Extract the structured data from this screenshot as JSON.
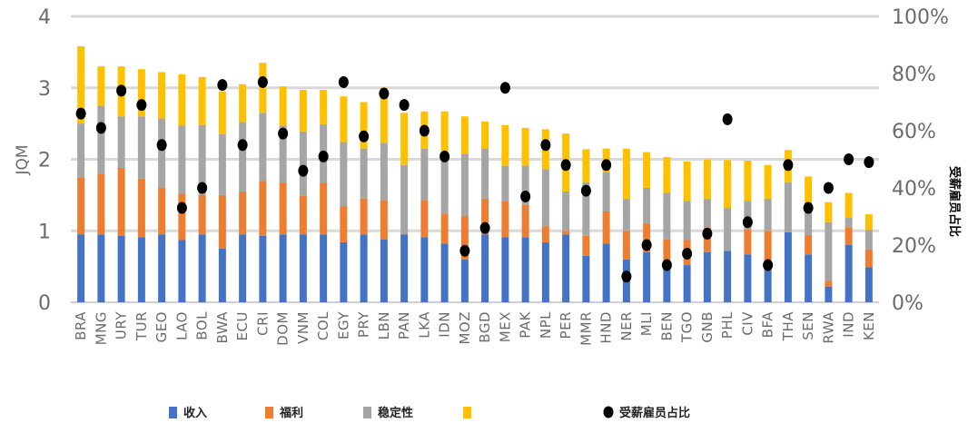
{
  "chart_data": {
    "type": "bar",
    "stacked": true,
    "ylabel": "JQM",
    "ylabel_right": "受薪雇员占比",
    "ylim": [
      0,
      4
    ],
    "yticks": [
      "0",
      "1",
      "2",
      "3",
      "4"
    ],
    "ylim_right": [
      0,
      100
    ],
    "yticks_right": [
      "0%",
      "20%",
      "40%",
      "60%",
      "80%",
      "100%"
    ],
    "grid": true,
    "legend_position": "bottom",
    "categories": [
      "BRA",
      "MNG",
      "URY",
      "TUR",
      "GEO",
      "LAO",
      "BOL",
      "BWA",
      "ECU",
      "CRI",
      "DOM",
      "VNM",
      "COL",
      "EGY",
      "PRY",
      "LBN",
      "PAN",
      "LKA",
      "IDN",
      "MOZ",
      "BGD",
      "MEX",
      "PAK",
      "NPL",
      "PER",
      "MMR",
      "HND",
      "NER",
      "MLI",
      "BEN",
      "TGO",
      "GNB",
      "PHL",
      "CIV",
      "BFA",
      "THA",
      "SEN",
      "RWA",
      "IND",
      "KEN"
    ],
    "series": [
      {
        "name": "收入",
        "color": "#4472c4",
        "values": [
          0.95,
          0.95,
          0.93,
          0.91,
          0.95,
          0.87,
          0.95,
          0.75,
          0.95,
          0.93,
          0.95,
          0.95,
          0.95,
          0.84,
          0.95,
          0.88,
          0.95,
          0.91,
          0.82,
          0.6,
          0.95,
          0.91,
          0.91,
          0.84,
          0.95,
          0.65,
          0.82,
          0.6,
          0.7,
          0.58,
          0.52,
          0.7,
          0.72,
          0.67,
          0.45,
          0.98,
          0.67,
          0.22,
          0.8,
          0.49
        ]
      },
      {
        "name": "福利",
        "color": "#ed7d31",
        "values": [
          0.8,
          0.85,
          0.95,
          0.82,
          0.65,
          0.65,
          0.55,
          0.75,
          0.6,
          0.77,
          0.72,
          0.54,
          0.72,
          0.5,
          0.5,
          0.55,
          0.0,
          0.52,
          0.42,
          0.6,
          0.5,
          0.5,
          0.45,
          0.22,
          0.05,
          0.28,
          0.45,
          0.4,
          0.4,
          0.3,
          0.35,
          0.35,
          0.0,
          0.35,
          0.55,
          0.0,
          0.27,
          0.08,
          0.25,
          0.25
        ]
      },
      {
        "name": "稳定性",
        "color": "#a5a5a5",
        "values": [
          0.75,
          0.95,
          0.72,
          0.87,
          0.97,
          0.95,
          0.98,
          0.85,
          0.97,
          0.95,
          0.8,
          0.9,
          0.82,
          0.9,
          0.7,
          0.8,
          0.97,
          0.72,
          0.75,
          0.87,
          0.7,
          0.5,
          0.55,
          0.8,
          0.55,
          0.75,
          0.55,
          0.45,
          0.5,
          0.65,
          0.55,
          0.4,
          0.6,
          0.4,
          0.45,
          0.7,
          0.45,
          0.82,
          0.13,
          0.27
        ]
      },
      {
        "name": "",
        "color": "#ffc000",
        "values": [
          1.08,
          0.55,
          0.7,
          0.66,
          0.65,
          0.72,
          0.67,
          0.6,
          0.53,
          0.7,
          0.55,
          0.58,
          0.48,
          0.64,
          0.65,
          0.77,
          0.73,
          0.52,
          0.68,
          0.53,
          0.38,
          0.57,
          0.53,
          0.56,
          0.81,
          0.46,
          0.33,
          0.7,
          0.5,
          0.5,
          0.55,
          0.55,
          0.67,
          0.56,
          0.47,
          0.45,
          0.37,
          0.28,
          0.35,
          0.22
        ]
      }
    ],
    "scatter": {
      "name": "受薪雇员占比",
      "axis": "right",
      "color": "#000000",
      "values": [
        66,
        61,
        74,
        69,
        55,
        33,
        40,
        76,
        55,
        77,
        59,
        46,
        51,
        77,
        58,
        73,
        69,
        60,
        51,
        18,
        26,
        75,
        37,
        55,
        48,
        39,
        48,
        9,
        20,
        13,
        17,
        24,
        64,
        28,
        13,
        48,
        33,
        40,
        50,
        49
      ]
    }
  }
}
